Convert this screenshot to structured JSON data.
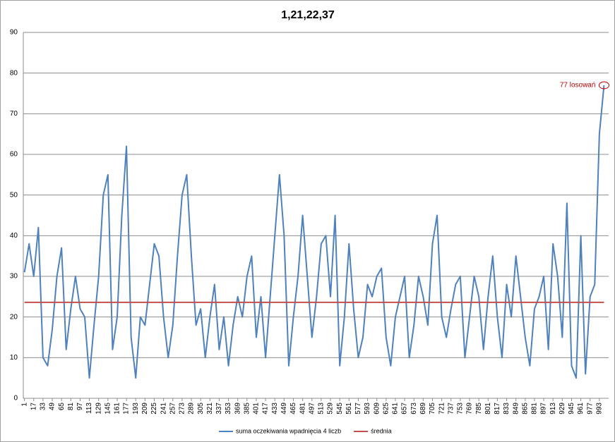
{
  "chart_data": {
    "type": "line",
    "title": "1,21,22,37",
    "annotation": {
      "text": "77 losowań",
      "color": "#c00000"
    },
    "x": [
      1,
      9,
      17,
      25,
      33,
      41,
      49,
      57,
      65,
      73,
      81,
      89,
      97,
      105,
      113,
      121,
      129,
      137,
      145,
      153,
      161,
      169,
      177,
      185,
      193,
      201,
      209,
      217,
      225,
      233,
      241,
      249,
      257,
      265,
      273,
      281,
      289,
      297,
      305,
      313,
      321,
      329,
      337,
      345,
      353,
      361,
      369,
      377,
      385,
      393,
      401,
      409,
      417,
      425,
      433,
      441,
      449,
      457,
      465,
      473,
      481,
      489,
      497,
      505,
      513,
      521,
      529,
      537,
      545,
      553,
      561,
      569,
      577,
      585,
      593,
      601,
      609,
      617,
      625,
      633,
      641,
      649,
      657,
      665,
      673,
      681,
      689,
      697,
      705,
      713,
      721,
      729,
      737,
      745,
      753,
      761,
      769,
      777,
      785,
      793,
      801,
      809,
      817,
      825,
      833,
      841,
      849,
      857,
      865,
      873,
      881,
      889,
      897,
      905,
      913,
      921,
      929,
      937,
      945,
      953,
      961,
      969,
      977,
      985,
      993,
      1001
    ],
    "series": [
      {
        "name": "suma oczekiwania wpadnięcia 4 liczb",
        "color": "#4f81bd",
        "values": [
          31,
          38,
          30,
          42,
          10,
          8,
          17,
          30,
          37,
          12,
          22,
          30,
          22,
          20,
          5,
          18,
          30,
          50,
          55,
          12,
          20,
          45,
          62,
          15,
          5,
          20,
          18,
          28,
          38,
          35,
          20,
          10,
          18,
          35,
          50,
          55,
          35,
          18,
          22,
          10,
          20,
          28,
          12,
          20,
          8,
          18,
          25,
          20,
          30,
          35,
          15,
          25,
          10,
          25,
          40,
          55,
          40,
          8,
          20,
          30,
          45,
          30,
          15,
          25,
          38,
          40,
          25,
          45,
          8,
          20,
          38,
          22,
          10,
          15,
          28,
          25,
          30,
          32,
          15,
          8,
          20,
          25,
          30,
          10,
          18,
          30,
          25,
          18,
          38,
          45,
          20,
          15,
          22,
          28,
          30,
          10,
          20,
          30,
          25,
          12,
          25,
          35,
          20,
          10,
          28,
          20,
          35,
          25,
          15,
          8,
          22,
          25,
          30,
          12,
          38,
          30,
          15,
          48,
          8,
          5,
          40,
          6,
          25,
          28,
          65,
          77
        ]
      },
      {
        "name": "średnia",
        "color": "#c0504d",
        "values": [
          23.6,
          23.6,
          23.6,
          23.6,
          23.6,
          23.6,
          23.6,
          23.6,
          23.6,
          23.6,
          23.6,
          23.6,
          23.6,
          23.6,
          23.6,
          23.6,
          23.6,
          23.6,
          23.6,
          23.6,
          23.6,
          23.6,
          23.6,
          23.6,
          23.6,
          23.6,
          23.6,
          23.6,
          23.6,
          23.6,
          23.6,
          23.6,
          23.6,
          23.6,
          23.6,
          23.6,
          23.6,
          23.6,
          23.6,
          23.6,
          23.6,
          23.6,
          23.6,
          23.6,
          23.6,
          23.6,
          23.6,
          23.6,
          23.6,
          23.6,
          23.6,
          23.6,
          23.6,
          23.6,
          23.6,
          23.6,
          23.6,
          23.6,
          23.6,
          23.6,
          23.6,
          23.6,
          23.6,
          23.6,
          23.6,
          23.6,
          23.6,
          23.6,
          23.6,
          23.6,
          23.6,
          23.6,
          23.6,
          23.6,
          23.6,
          23.6,
          23.6,
          23.6,
          23.6,
          23.6,
          23.6,
          23.6,
          23.6,
          23.6,
          23.6,
          23.6,
          23.6,
          23.6,
          23.6,
          23.6,
          23.6,
          23.6,
          23.6,
          23.6,
          23.6,
          23.6,
          23.6,
          23.6,
          23.6,
          23.6,
          23.6,
          23.6,
          23.6,
          23.6,
          23.6,
          23.6,
          23.6,
          23.6,
          23.6,
          23.6,
          23.6,
          23.6,
          23.6,
          23.6,
          23.6,
          23.6,
          23.6,
          23.6,
          23.6,
          23.6,
          23.6,
          23.6,
          23.6,
          23.6,
          23.6,
          23.6
        ]
      }
    ],
    "xlim": [
      -1,
      1009
    ],
    "xticks": [
      1,
      17,
      33,
      49,
      65,
      81,
      97,
      113,
      129,
      145,
      161,
      177,
      193,
      209,
      225,
      241,
      257,
      273,
      289,
      305,
      321,
      337,
      353,
      369,
      385,
      401,
      417,
      433,
      449,
      465,
      481,
      497,
      513,
      529,
      545,
      561,
      577,
      593,
      609,
      625,
      641,
      657,
      673,
      689,
      705,
      721,
      737,
      753,
      769,
      785,
      801,
      817,
      833,
      849,
      865,
      881,
      897,
      913,
      929,
      945,
      961,
      977,
      993
    ],
    "ylim": [
      0,
      90
    ],
    "yticks": [
      0,
      10,
      20,
      30,
      40,
      50,
      60,
      70,
      80,
      90
    ],
    "grid": true,
    "legend": "bottom"
  }
}
